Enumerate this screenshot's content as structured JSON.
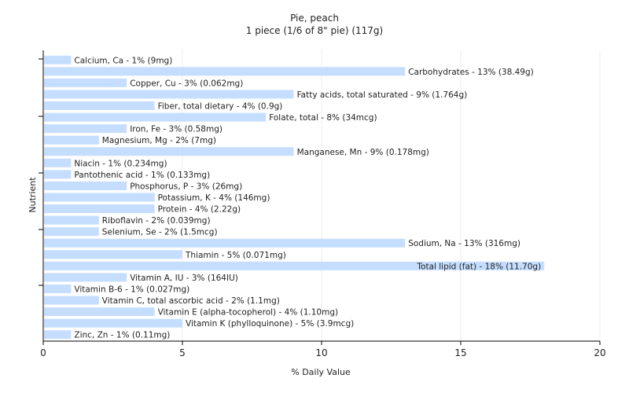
{
  "chart_data": {
    "type": "bar",
    "orientation": "horizontal",
    "title": "Pie, peach",
    "subtitle": "1 piece (1/6 of 8\" pie) (117g)",
    "xlabel": "% Daily Value",
    "ylabel": "Nutrient",
    "xlim": [
      0,
      20
    ],
    "xticks": [
      0,
      5,
      10,
      15,
      20
    ],
    "grid": "vertical",
    "colors": {
      "bar": "#c5deff",
      "grid": "#ececec",
      "axis": "#000000",
      "text": "#222222"
    },
    "categories": [
      "Calcium, Ca",
      "Carbohydrates",
      "Copper, Cu",
      "Fatty acids, total saturated",
      "Fiber, total dietary",
      "Folate, total",
      "Iron, Fe",
      "Magnesium, Mg",
      "Manganese, Mn",
      "Niacin",
      "Pantothenic acid",
      "Phosphorus, P",
      "Potassium, K",
      "Protein",
      "Riboflavin",
      "Selenium, Se",
      "Sodium, Na",
      "Thiamin",
      "Total lipid (fat)",
      "Vitamin A, IU",
      "Vitamin B-6",
      "Vitamin C, total ascorbic acid",
      "Vitamin E (alpha-tocopherol)",
      "Vitamin K (phylloquinone)",
      "Zinc, Zn"
    ],
    "values": [
      1,
      13,
      3,
      9,
      4,
      8,
      3,
      2,
      9,
      1,
      1,
      3,
      4,
      4,
      2,
      2,
      13,
      5,
      18,
      3,
      1,
      2,
      4,
      5,
      1
    ],
    "labels": [
      "Calcium, Ca - 1% (9mg)",
      "Carbohydrates - 13% (38.49g)",
      "Copper, Cu - 3% (0.062mg)",
      "Fatty acids, total saturated - 9% (1.764g)",
      "Fiber, total dietary - 4% (0.9g)",
      "Folate, total - 8% (34mcg)",
      "Iron, Fe - 3% (0.58mg)",
      "Magnesium, Mg - 2% (7mg)",
      "Manganese, Mn - 9% (0.178mg)",
      "Niacin - 1% (0.234mg)",
      "Pantothenic acid - 1% (0.133mg)",
      "Phosphorus, P - 3% (26mg)",
      "Potassium, K - 4% (146mg)",
      "Protein - 4% (2.22g)",
      "Riboflavin - 2% (0.039mg)",
      "Selenium, Se - 2% (1.5mcg)",
      "Sodium, Na - 13% (316mg)",
      "Thiamin - 5% (0.071mg)",
      "Total lipid (fat) - 18% (11.70g)",
      "Vitamin A, IU - 3% (164IU)",
      "Vitamin B-6 - 1% (0.027mg)",
      "Vitamin C, total ascorbic acid - 2% (1.1mg)",
      "Vitamin E (alpha-tocopherol) - 4% (1.10mg)",
      "Vitamin K (phylloquinone) - 5% (3.9mcg)",
      "Zinc, Zn - 1% (0.11mg)"
    ]
  }
}
